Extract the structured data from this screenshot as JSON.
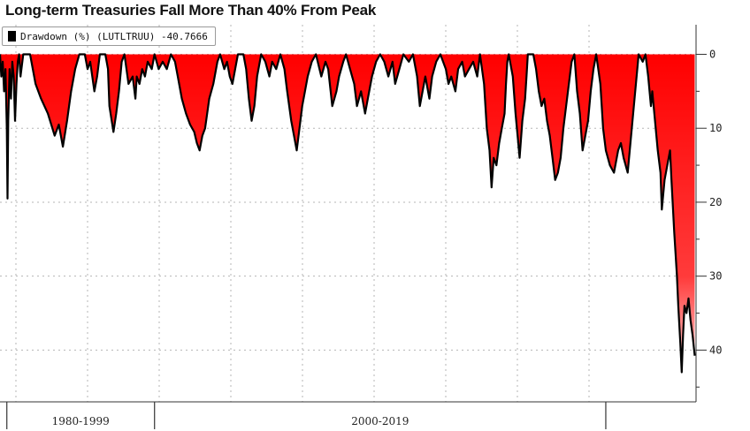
{
  "title": "Long-term Treasuries Fall More Than 40% From Peak",
  "legend": {
    "swatch_color": "#000000",
    "entries": [
      {
        "label": "Drawdown (%) (LUTLTRUU) -40.7666"
      }
    ]
  },
  "chart_data": {
    "type": "area",
    "title": "Long-term Treasuries Fall More Than 40% From Peak",
    "xlabel": "",
    "ylabel": "",
    "x_range": [
      1973.0,
      2023.9
    ],
    "ylim": [
      -47,
      4
    ],
    "y_ticks": [
      0,
      -10,
      -20,
      -30,
      -40
    ],
    "y_tick_labels": [
      "0",
      "10",
      "20",
      "30",
      "40"
    ],
    "y_axis_side": "right",
    "grid": true,
    "legend_position": "top-left",
    "x_era_labels": [
      {
        "label": "1980-1999",
        "from": 1973.5,
        "to": 1984.3
      },
      {
        "label": "2000-2019",
        "from": 1984.3,
        "to": 2017.3
      }
    ],
    "x_era_dividers": [
      1973.5,
      1984.3,
      2017.3
    ],
    "fill_gradient": [
      "#ff0000",
      "#ffd6d6"
    ],
    "line_color": "#000000",
    "series": [
      {
        "name": "Drawdown (%) (LUTLTRUU) -40.7666",
        "last_value": -40.7666,
        "points": [
          [
            1973.0,
            0
          ],
          [
            1973.1,
            -3
          ],
          [
            1973.2,
            -1
          ],
          [
            1973.3,
            -5
          ],
          [
            1973.4,
            -2
          ],
          [
            1973.5,
            -10
          ],
          [
            1973.55,
            -19.5
          ],
          [
            1973.6,
            -9
          ],
          [
            1973.7,
            -2
          ],
          [
            1973.8,
            -6
          ],
          [
            1973.9,
            -1
          ],
          [
            1974.0,
            -3
          ],
          [
            1974.1,
            -9
          ],
          [
            1974.2,
            -4
          ],
          [
            1974.3,
            -1
          ],
          [
            1974.4,
            0
          ],
          [
            1974.5,
            -3
          ],
          [
            1974.7,
            0
          ],
          [
            1975.2,
            0
          ],
          [
            1975.6,
            -4
          ],
          [
            1976.0,
            -6
          ],
          [
            1976.5,
            -8
          ],
          [
            1977.0,
            -11
          ],
          [
            1977.3,
            -9.5
          ],
          [
            1977.6,
            -12.5
          ],
          [
            1977.9,
            -9
          ],
          [
            1978.2,
            -5
          ],
          [
            1978.5,
            -2
          ],
          [
            1978.8,
            0
          ],
          [
            1979.2,
            0
          ],
          [
            1979.4,
            -2
          ],
          [
            1979.6,
            -1
          ],
          [
            1979.9,
            -5
          ],
          [
            1980.1,
            -3
          ],
          [
            1980.3,
            0
          ],
          [
            1980.7,
            0
          ],
          [
            1980.9,
            -2
          ],
          [
            1981.0,
            -7
          ],
          [
            1981.3,
            -10.5
          ],
          [
            1981.5,
            -8
          ],
          [
            1981.7,
            -5
          ],
          [
            1981.9,
            -1
          ],
          [
            1982.1,
            0
          ],
          [
            1982.4,
            -4
          ],
          [
            1982.7,
            -3
          ],
          [
            1982.9,
            -6
          ],
          [
            1983.0,
            -3
          ],
          [
            1983.2,
            -4
          ],
          [
            1983.4,
            -2
          ],
          [
            1983.6,
            -3
          ],
          [
            1983.8,
            -1
          ],
          [
            1984.1,
            -2
          ],
          [
            1984.3,
            0
          ],
          [
            1984.6,
            -2
          ],
          [
            1984.9,
            -1
          ],
          [
            1985.2,
            -2
          ],
          [
            1985.5,
            0
          ],
          [
            1985.8,
            -1
          ],
          [
            1986.0,
            -3
          ],
          [
            1986.3,
            -6
          ],
          [
            1986.6,
            -8
          ],
          [
            1986.9,
            -9.5
          ],
          [
            1987.2,
            -10.5
          ],
          [
            1987.4,
            -12
          ],
          [
            1987.6,
            -13
          ],
          [
            1987.8,
            -11
          ],
          [
            1988.0,
            -10
          ],
          [
            1988.3,
            -6
          ],
          [
            1988.6,
            -4
          ],
          [
            1988.9,
            -1
          ],
          [
            1989.1,
            0
          ],
          [
            1989.4,
            -2
          ],
          [
            1989.6,
            -1
          ],
          [
            1989.8,
            -3
          ],
          [
            1990.0,
            -4
          ],
          [
            1990.2,
            -2
          ],
          [
            1990.4,
            0
          ],
          [
            1990.8,
            0
          ],
          [
            1991.0,
            -2
          ],
          [
            1991.2,
            -6
          ],
          [
            1991.4,
            -9
          ],
          [
            1991.6,
            -7
          ],
          [
            1991.8,
            -3
          ],
          [
            1992.1,
            0
          ],
          [
            1992.4,
            -1
          ],
          [
            1992.7,
            -3
          ],
          [
            1992.9,
            -1
          ],
          [
            1993.2,
            -2
          ],
          [
            1993.5,
            0
          ],
          [
            1993.8,
            -2
          ],
          [
            1994.0,
            -5
          ],
          [
            1994.3,
            -9
          ],
          [
            1994.5,
            -11
          ],
          [
            1994.7,
            -13
          ],
          [
            1994.9,
            -10
          ],
          [
            1995.1,
            -7
          ],
          [
            1995.3,
            -5
          ],
          [
            1995.5,
            -3
          ],
          [
            1995.8,
            -1
          ],
          [
            1996.1,
            0
          ],
          [
            1996.5,
            -3
          ],
          [
            1996.8,
            -1
          ],
          [
            1997.0,
            -2
          ],
          [
            1997.3,
            -7
          ],
          [
            1997.6,
            -5
          ],
          [
            1997.8,
            -3
          ],
          [
            1998.1,
            -1
          ],
          [
            1998.3,
            0
          ],
          [
            1998.6,
            -2
          ],
          [
            1998.9,
            -4
          ],
          [
            1999.1,
            -7
          ],
          [
            1999.4,
            -5
          ],
          [
            1999.7,
            -8
          ],
          [
            1999.9,
            -6
          ],
          [
            2000.2,
            -3
          ],
          [
            2000.5,
            -1
          ],
          [
            2000.8,
            0
          ],
          [
            2001.1,
            -1
          ],
          [
            2001.4,
            -3
          ],
          [
            2001.7,
            -1
          ],
          [
            2001.9,
            -4
          ],
          [
            2002.2,
            -2
          ],
          [
            2002.5,
            0
          ],
          [
            2002.9,
            -1
          ],
          [
            2003.2,
            0
          ],
          [
            2003.5,
            -3
          ],
          [
            2003.7,
            -7
          ],
          [
            2003.9,
            -5
          ],
          [
            2004.1,
            -3
          ],
          [
            2004.4,
            -6
          ],
          [
            2004.6,
            -3
          ],
          [
            2004.9,
            -1
          ],
          [
            2005.2,
            0
          ],
          [
            2005.6,
            -2
          ],
          [
            2005.8,
            -4
          ],
          [
            2006.0,
            -3
          ],
          [
            2006.3,
            -5
          ],
          [
            2006.5,
            -2
          ],
          [
            2006.8,
            -1
          ],
          [
            2007.0,
            -3
          ],
          [
            2007.3,
            -2
          ],
          [
            2007.6,
            -1
          ],
          [
            2007.9,
            -3
          ],
          [
            2008.1,
            0
          ],
          [
            2008.4,
            -4
          ],
          [
            2008.6,
            -10
          ],
          [
            2008.8,
            -13
          ],
          [
            2008.95,
            -18
          ],
          [
            2009.1,
            -14
          ],
          [
            2009.3,
            -15
          ],
          [
            2009.5,
            -12
          ],
          [
            2009.7,
            -10
          ],
          [
            2009.9,
            -8
          ],
          [
            2010.0,
            -4
          ],
          [
            2010.1,
            -1
          ],
          [
            2010.2,
            0
          ],
          [
            2010.5,
            -3
          ],
          [
            2010.7,
            -8
          ],
          [
            2010.9,
            -12
          ],
          [
            2011.0,
            -14
          ],
          [
            2011.2,
            -9
          ],
          [
            2011.4,
            -6
          ],
          [
            2011.5,
            -3
          ],
          [
            2011.6,
            0
          ],
          [
            2012.0,
            0
          ],
          [
            2012.2,
            -2
          ],
          [
            2012.4,
            -5
          ],
          [
            2012.6,
            -7
          ],
          [
            2012.8,
            -6
          ],
          [
            2013.0,
            -9
          ],
          [
            2013.2,
            -11
          ],
          [
            2013.4,
            -14
          ],
          [
            2013.6,
            -17
          ],
          [
            2013.8,
            -16
          ],
          [
            2014.0,
            -14
          ],
          [
            2014.2,
            -10
          ],
          [
            2014.4,
            -7
          ],
          [
            2014.6,
            -4
          ],
          [
            2014.8,
            -1
          ],
          [
            2015.0,
            0
          ],
          [
            2015.2,
            -5
          ],
          [
            2015.4,
            -8
          ],
          [
            2015.6,
            -13
          ],
          [
            2015.8,
            -11
          ],
          [
            2016.0,
            -9
          ],
          [
            2016.2,
            -5
          ],
          [
            2016.4,
            -2
          ],
          [
            2016.6,
            0
          ],
          [
            2016.9,
            -4
          ],
          [
            2017.1,
            -10
          ],
          [
            2017.3,
            -13
          ],
          [
            2017.6,
            -15
          ],
          [
            2017.9,
            -16
          ],
          [
            2018.2,
            -13
          ],
          [
            2018.4,
            -12
          ],
          [
            2018.6,
            -14
          ],
          [
            2018.9,
            -16
          ],
          [
            2019.1,
            -12
          ],
          [
            2019.3,
            -8
          ],
          [
            2019.5,
            -4
          ],
          [
            2019.7,
            0
          ],
          [
            2020.0,
            -1
          ],
          [
            2020.2,
            0
          ],
          [
            2020.4,
            -3
          ],
          [
            2020.6,
            -7
          ],
          [
            2020.7,
            -5
          ],
          [
            2020.9,
            -9
          ],
          [
            2021.1,
            -13
          ],
          [
            2021.3,
            -16
          ],
          [
            2021.4,
            -21
          ],
          [
            2021.6,
            -17
          ],
          [
            2021.8,
            -15
          ],
          [
            2022.0,
            -13
          ],
          [
            2022.1,
            -17
          ],
          [
            2022.3,
            -24
          ],
          [
            2022.5,
            -30
          ],
          [
            2022.6,
            -34
          ],
          [
            2022.75,
            -39
          ],
          [
            2022.85,
            -43
          ],
          [
            2022.95,
            -38
          ],
          [
            2023.05,
            -34
          ],
          [
            2023.2,
            -35
          ],
          [
            2023.35,
            -33
          ],
          [
            2023.5,
            -36
          ],
          [
            2023.65,
            -38
          ],
          [
            2023.8,
            -40.7666
          ]
        ]
      }
    ]
  }
}
